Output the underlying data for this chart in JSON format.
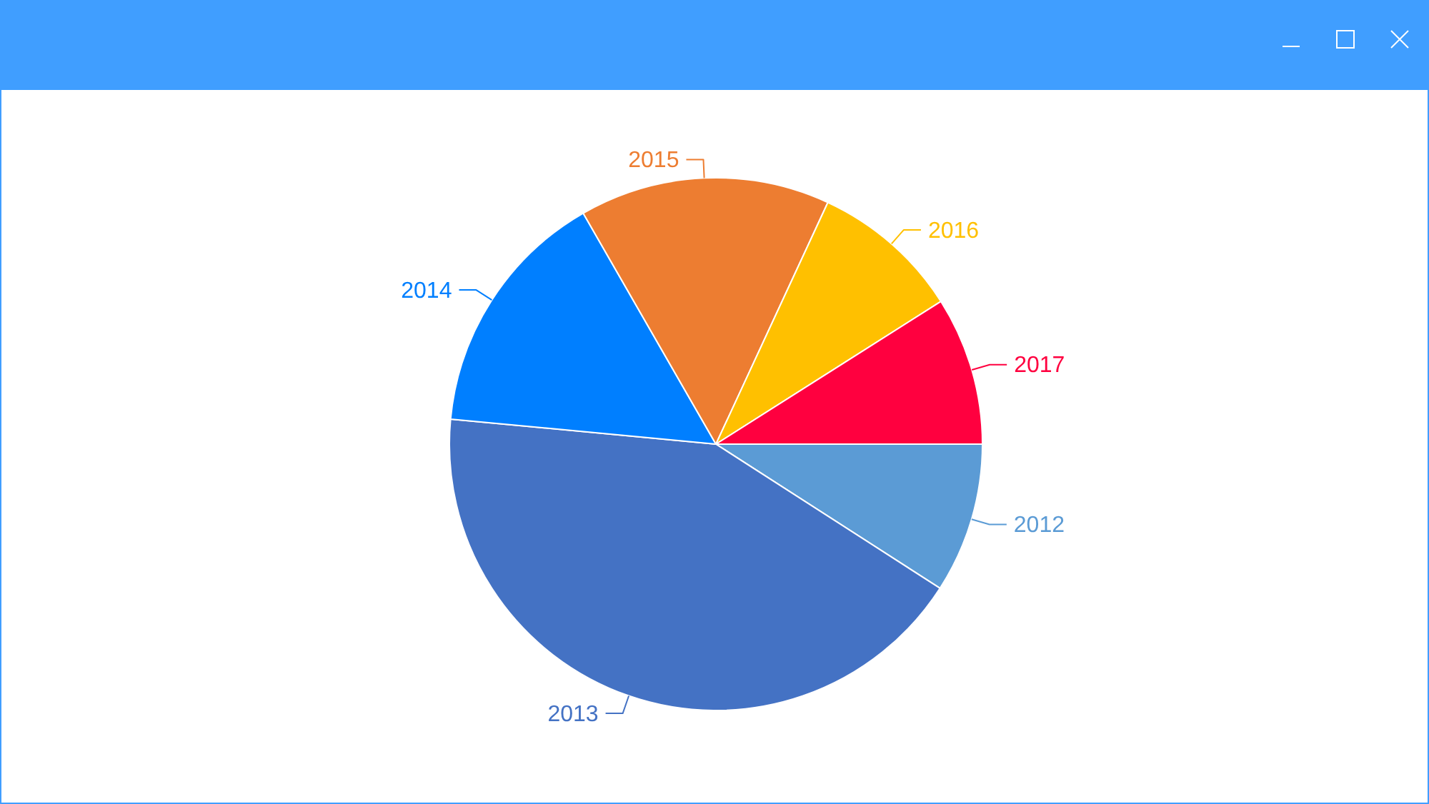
{
  "chart_data": {
    "type": "pie",
    "categories": [
      "2012",
      "2013",
      "2014",
      "2015",
      "2016",
      "2017"
    ],
    "values": [
      9.1,
      42.4,
      15.2,
      15.2,
      9.1,
      9.0
    ],
    "colors": [
      "#5b9bd5",
      "#4472c4",
      "#007fff",
      "#ed7d31",
      "#ffc000",
      "#ff003f"
    ]
  }
}
